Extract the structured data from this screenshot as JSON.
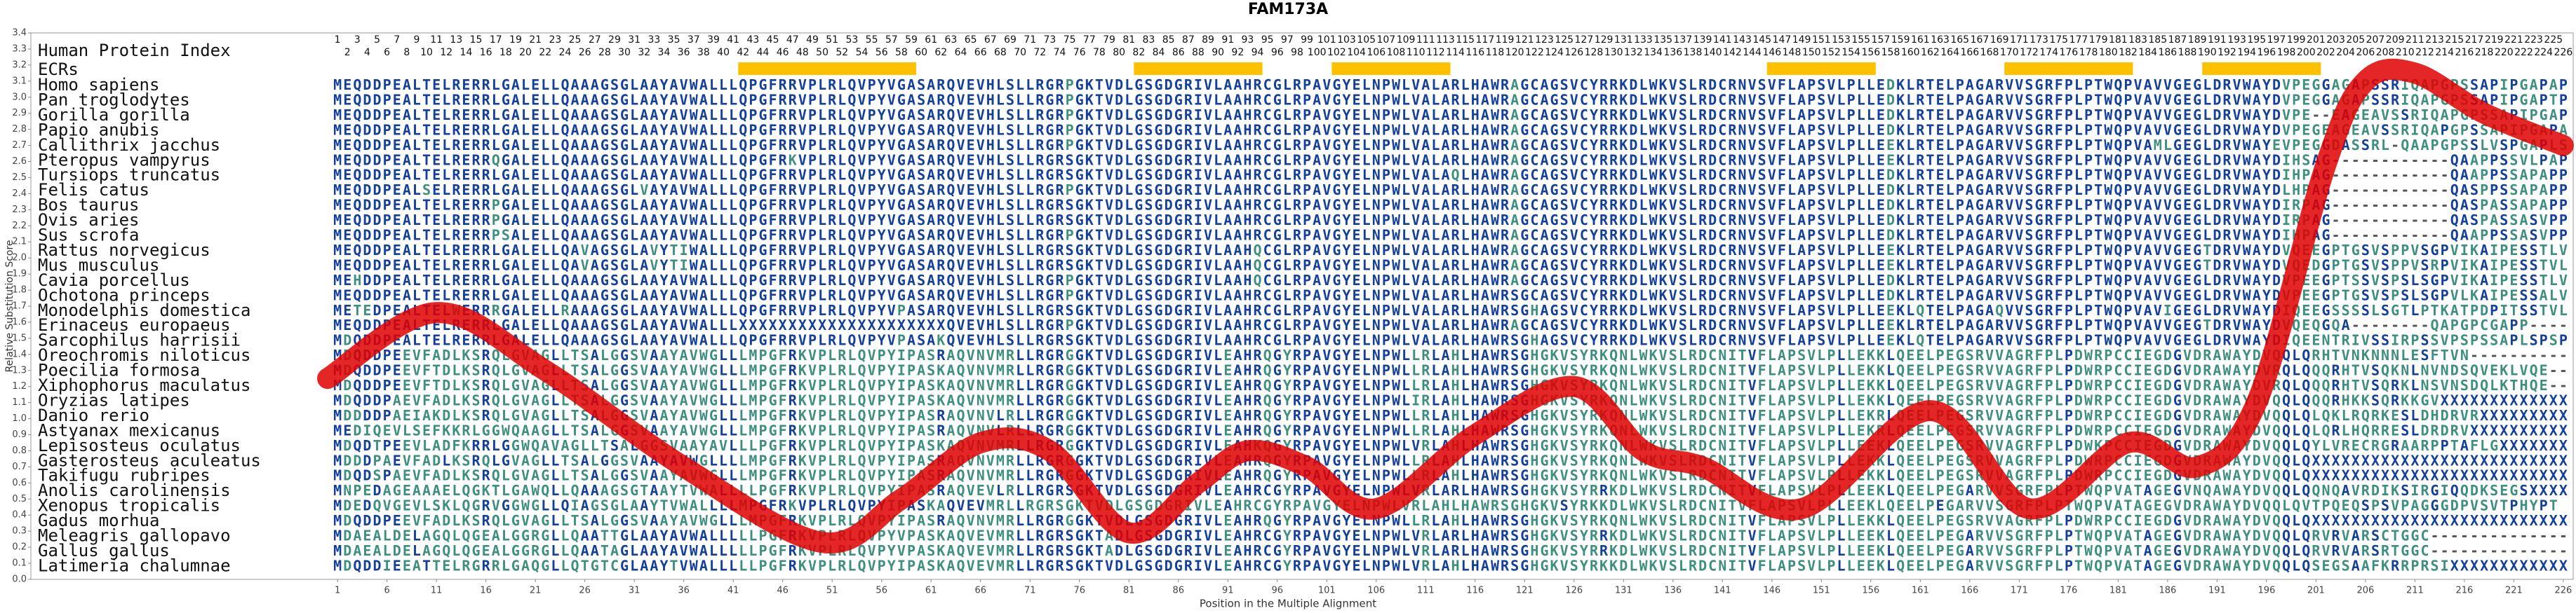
{
  "chart_data": {
    "type": "line",
    "title": "FAM173A",
    "ylabel": "Relative Substitution Score",
    "xlabel": "Position in the Multiple Alignment",
    "color": "#e00000",
    "x": [
      0,
      11,
      22,
      36,
      50,
      58,
      66,
      73,
      81,
      88,
      93,
      99,
      106,
      116,
      126,
      133,
      139,
      149,
      162,
      172,
      182,
      189,
      195,
      202,
      206,
      211,
      218,
      226
    ],
    "values": [
      1.25,
      1.66,
      1.3,
      0.7,
      0.23,
      0.5,
      0.85,
      0.8,
      0.29,
      0.6,
      0.8,
      0.7,
      0.44,
      0.9,
      1.2,
      0.8,
      0.7,
      0.44,
      1.05,
      0.44,
      0.85,
      0.7,
      1.1,
      2.58,
      3.1,
      3.15,
      2.9,
      2.7
    ],
    "xlim": [
      -30,
      227
    ],
    "ylim": [
      0,
      3.4
    ],
    "xticks": [
      1,
      6,
      11,
      16,
      21,
      26,
      31,
      36,
      41,
      46,
      51,
      56,
      61,
      66,
      71,
      76,
      81,
      86,
      91,
      96,
      101,
      106,
      111,
      116,
      121,
      126,
      131,
      136,
      141,
      146,
      151,
      156,
      161,
      166,
      171,
      176,
      181,
      186,
      191,
      196,
      201,
      206,
      211,
      216,
      221,
      226
    ],
    "yticks": [
      {
        "value": 0,
        "label": "0.0"
      },
      0.1,
      0.2,
      0.3,
      0.4,
      0.5,
      0.6,
      0.7,
      0.8,
      0.9,
      {
        "value": 1,
        "label": "1.0"
      },
      1.1,
      1.2,
      1.3,
      1.4,
      1.5,
      1.6,
      1.7,
      1.8,
      1.9,
      {
        "value": 2,
        "label": "2.0"
      },
      2.1,
      2.2,
      2.3,
      2.4,
      2.5,
      2.6,
      2.7,
      2.8,
      2.9,
      {
        "value": 3,
        "label": "3.0"
      },
      3.1,
      3.2,
      3.3,
      3.4
    ],
    "index_label": "Human Protein Index",
    "human_index": [
      1,
      2,
      3,
      4,
      5,
      6,
      7,
      8,
      9,
      10,
      11,
      12,
      13,
      14,
      15,
      16,
      17,
      18,
      19,
      20,
      21,
      22,
      23,
      24,
      25,
      26,
      27,
      28,
      29,
      30,
      31,
      32,
      33,
      34,
      35,
      36,
      37,
      38,
      39,
      40,
      41,
      42,
      43,
      44,
      45,
      46,
      47,
      48,
      49,
      50,
      51,
      52,
      53,
      54,
      55,
      56,
      57,
      58,
      59,
      60,
      61,
      62,
      63,
      64,
      65,
      66,
      67,
      68,
      69,
      70,
      71,
      72,
      73,
      74,
      75,
      76,
      77,
      78,
      79,
      80,
      81,
      82,
      83,
      84,
      85,
      86,
      87,
      88,
      89,
      90,
      91,
      92,
      93,
      94,
      95,
      96,
      97,
      98,
      99,
      100,
      101,
      102,
      103,
      104,
      105,
      106,
      107,
      108,
      109,
      110,
      111,
      112,
      113,
      114,
      115,
      116,
      117,
      118,
      119,
      120,
      121,
      122,
      123,
      124,
      125,
      126,
      127,
      128,
      129,
      130,
      131,
      132,
      133,
      134,
      135,
      136,
      137,
      138,
      139,
      140,
      141,
      142,
      143,
      144,
      145,
      146,
      147,
      148,
      149,
      150,
      151,
      152,
      153,
      154,
      155,
      156,
      157,
      158,
      159,
      160,
      161,
      162,
      163,
      164,
      165,
      166,
      167,
      168,
      169,
      170,
      171,
      172,
      173,
      174,
      175,
      176,
      177,
      178,
      179,
      180,
      181,
      182,
      183,
      184,
      185,
      186,
      187,
      188,
      189,
      190,
      191,
      192,
      193,
      194,
      195,
      196,
      197,
      198,
      199,
      200,
      201,
      202,
      203,
      204,
      205,
      206,
      207,
      208,
      209,
      210,
      211,
      212,
      213,
      214,
      215,
      216,
      217,
      218,
      219,
      220,
      221,
      222,
      223,
      224,
      225,
      226
    ],
    "ecr_label": "ECRs",
    "ecr_color": "#ffc000",
    "ecrs": [
      [
        42,
        59
      ],
      [
        82,
        94
      ],
      [
        102,
        113
      ],
      [
        146,
        156
      ],
      [
        170,
        182
      ],
      [
        190,
        201
      ]
    ],
    "species": [
      "Homo sapiens",
      "Pan troglodytes",
      "Gorilla gorilla",
      "Papio anubis",
      "Callithrix jacchus",
      "Pteropus vampyrus",
      "Tursiops truncatus",
      "Felis catus",
      "Bos taurus",
      "Ovis aries",
      "Sus scrofa",
      "Rattus norvegicus",
      "Mus musculus",
      "Cavia porcellus",
      "Ochotona princeps",
      "Monodelphis domestica",
      "Erinaceus europaeus",
      "Sarcophilus harrisii",
      "Oreochromis niloticus",
      "Poecilia formosa",
      "Xiphophorus maculatus",
      "Oryzias latipes",
      "Danio rerio",
      "Astyanax mexicanus",
      "Lepisosteus oculatus",
      "Gasterosteus aculeatus",
      "Takifugu rubripes",
      "Anolis carolinensis",
      "Xenopus tropicalis",
      "Gadus morhua",
      "Meleagris gallopavo",
      "Gallus gallus",
      "Latimeria chalumnae"
    ],
    "sequences": [
      "MEQDDPEALTELRERRLGALELLQAAAGSGLAAYAVWALLLQPGFRRVPLRLQVPYVGASARQVEVHLSLLRGRPGKTVDLGSGDGRIVLAAHRCGLRPAVGYELNPWLVALARLHAWRAGCAGSVCYRRKDLWKVSLRDCRNVSVFLAPSVLPLLEDKLRTELPAGARVVSGRFPLPTWQPVAVVGEGLDRVWAYDVPEGGAGAPSSRIQAPGPSSAPIPGAPAP",
      "MEQDDPEALTELRERRLGALELLQAAAGSGLAAYAVWALLLQPGFRRVPLRLQVPYVGASARQVEVHLSLLRGRPGKTVDLGSGDGRIVLAAHRCGLRPAVGYELNPWLVALARLHAWRAGCAGSVCYRRKDLWKVSLRDCRNVSVFLAPSVLPLLEDKLRTELPAGARVVSGRFPLPTWQPVAVVGEGLDRVWAYDVPEGGAGAPSSRIQAPGPSSAPIPGAPTP",
      "MEQDDPEALTELRERRLGALELLQAAAGSGLAAYAVWALLLQPGFRRVPLRLQVPYVGASARQVEVHLSLLRGRPGKTVDLGSGDGRIVLAAHRCGLRPAVGYELNPWLVALARLHAWRAGCAGSVCYRRKDLWKVSLRDCRNVSVFLAPSVLPLLEDKLRTELPAGARVVSGRFPLPTWQPVAVVGEGLDRVWAYDVPE--EAGEAVSSRIQAPGPSSAPIPGAP",
      "MEQDDPEALTELRERRLGALELLQAAAGSGLAAYAVWALLLQPGFRRVPLRLQVPYVGASARQVEVHLSLLRGRPGKTVDLGSGDGRIVLAAHRCGLRPAVGYELNPWLVALARLHAWRAGCAGSVCYRRKDLWKVSLRDCRNVSVFLAPSVLPLLEDKLRTELPAGARVVSGRFPLPTWQPVAVVGEGLDRVWAYDVPEGEAGEAVSSRIQAPGPSSAPIPGAPA",
      "MEQDDPEALTELRERRLGALELLQAAAGSGLAAYAVWALLLQPGFRRVPLRLQVPYVGASARQVEVHLSLLRGRPGKTVDLGSGDGRIVLAAHRCGLRPAVGYELNPWLVALARLHAWRAGCAGSVCYRRKDLWKVSLRDCRNVSVFLAPSVLPLLEEKLRTELPAGARVVSGRFPLPTWQPVAMLGEGLDRVWAYEVPEGGDASSRL-QAAPGPSSLVSPGAPLS",
      "MEQDDPEALTELRERRQGALELLQAAAGSGLAAYAVWALLLQPGFRKVPLRLQVPYVGASARQVEVHLSLLRGRSGKTVDLGSGDGRIVLAAHRCGLRPAVGYELNPWLVALARLHAWRAGCAGSVCYRRKDLWKVSLRDCRNVSVFLAPSVLPLLEEKLRTELPAGARVVSGRFPLPTWQPVAVVGEGLDRVWAYDIHSAG------------QAAPPSSVLPAP",
      "MEQDDPEALTELRERRLGALELLQAAAGSGLAAYAVWALLLQPGFRRVPLRLQVPYVGASARQVEVHLSLLRGRSGKTVDLGSGDGRIVLAAHRCGLRPAVGYELNPWLVALAQLHAWRAGCAGSVCYRRKDLWKVSLRDCRNVSVFLAPSVLPLLEDKLRTELPAGARVVSGRFPLPTWQPVAVVGEGLDRVWAYDIHPAG------------QAAPPSSAPAPP",
      "MEQDDPEALSELRERRLGALELLQAAAGSGLVAYAVWALLLQPGFRRVPLRLQVPYVGASARQVEVHLSLLRGRPGKTVDLGSGDGRIVLAAHRCGLRPAVGYELNPWLVALARLHAWRAGCAGSVCYRRKDLWKVSLRDCRNVSVFLAPSVLPLLEDKLRTELPAGARVVSGRFPLPTWQPVAVVGEGLDRVWAYDLHPAG------------QASPPSSAPAPP",
      "MEQDDPEALTELRERRPGALELLQAAAGSGLAAYAVWALLLQPGFRRVPLRLQVPYVGASARQVEVHLSLLRGRSGKTVDLGSGDGRIVLAAHRCGLRPAVGYELNPWLVALARLHAWRAGCAGSVCYRRKDLWKVSLRDCRNVSVFLAPSVLPLLEDKLRTELPAGARVVSGRFPLPTWQPVAVVGEGLDRVWAYDIRPAG------------QASPASSAPAPP",
      "MEQDDPEALTELRERRPGALELLQAAAGSGLAAYAVWALLLQPGFRRVPLRLQVPYVGASARQVEVHLSLLRGRSGKTVDLGSGDGRIVLAAHRCGLRPAVGYELNPWLVALARLHAWRAGCAGSVCYRRKDLWKVSLRDCRNVSVFLAPSVLPLLEDKLRTELPAGARVVSGRFPLPTWQPVAVVGEGLDRVWAYDIRPAG------------QASPASSASVPP",
      "MEQDDPEALTELRERRPSALELLQAAAGSGLAAYAVWALLLQPGFRRVPLRLQVPYVGASARQVEVHLSLLRGRPGKTVDLGSGDGRIVLAAHRCGLRPAVGYELNPWLVALARLHAWRAGCAGSVCYRRKDLWKVSLRDCRNVSVFLAPSVLPLLEDKLRTELPAGARVVSGRFPLPTWQPVAVVGEGLDRVWAYDIHPAG------------QAAPPSSASVPP",
      "MEQDDPEALTELRERRLGALELLQAVAGSGLAVYTIWALLLQPGFRRVPLRLQVPYVGASARQVEVHLSLLRGRSGKTVDLGSGDGRIVLAAHQCGLRPAVGYELNPWLVALARLHAWRAGCAGSVCYRRKDLWKVSLRDCRNVSVFLAPSVLPLLEEKLRTELPAGARVVSGRFPLPTWQPVAVVGEGTDRVWAYDVQEEGPTGSVSPPVSGPVIKAIPESSTLV",
      "MEQDDPEALTELRERRLGALELLQAVAGSGLAVYTIWALLLQPGFRRVPLRLQVPYVGASARQVEVHLSLLRGRSGKTVDLGSGDGRIVLAAHQCGLRPAVGYELNPWLVALARLHAWRAGCAGSVCYRRKDLWKVSLRDCRNVSVFLAPSVLPLLEEKLRTELPAGARVVSGRFPLPTWQPVAVVGEGTDRVWAYDVQEDGPTGSVSPPVSRPVIKAIPESSTVL",
      "MEHDDPEALTELRERRLGALELLQAAAGSGLAAYAVWALLLQPGFRRVPLRLQVPYVGASARQVEVHLSLLRGRPGKTVDLGSGDGRIVLAAHQCGLRPAVGYELNPWLVALARLHAWRAGCAGSVCYRRKDLWKVSLRDCRNVSVFLAPSVLPLLEDKLRTELPAGARVVSGRFPLPTWQPVAVVGEGLDRVWAYDVPEEGPTSSVSPSLSGPVIKAIPESSTLV",
      "MEQDDPEALTELRERRLGALELLQAAAGSGLAAYAVWALLLQPGFRRVPLRLQVPYVGASARQVEVHLSLLRGRPGKTVDLGSGDGRIVLAAHRCGLRPAVGYELNPWLVALARLHAWRSGCAGSVCYRRKDLWKVSLRDCRNVSVFLAPSVLPLLEDKLRTELPAGARVVSGRFPLPTWQPVAVVGEGLDRVWAYDVPEEGPTGSVSPSLSGPVLKAIPESSALV",
      "METEDPEALTELWERRRGALELLRAAAGSGLAAYAVWALLLQPGFRRVPLRLQVPYVPASARQVEVHLSLLRGRSGKTVDLGSGDGRIVLAAHRCGLRPAVGYELNPWLVALARLHAWRSGHAGSVCYRRKDLWKVSLRDCRNVSVFLAPSVLPLLEEKLQTELPAGAQVVSGRFPLPTWQPVAVIGEGLDRVWAYDIQEEGSSSSLSGTLPTKATPDPITSSTVL",
      "MEQDDPEALTELRERRLGALELLQAAAGSGLAAYAVWALLLXXXXXXXXXXXXXXXXXXXXXQVEVHLSLLRGRPGKTVDLGSGDGRIVLAAHRCGLRPAVGYELNPWLVALARLHAWRAGCAGSVCYRRKDLWKVSLRDCRNVSVFLAPSVLPLLEEKLRTELPAGARVVSGRFPLPTWQPVAVVGEGTDRVWAYDVQEQGQA--------QAPGPCGAPP----",
      "MDQDDPEALTELRERRLGALELLQAAAGSGLAAYAVWALLLQPGFRRVPLRLQVPYVPASAKQVEVHLSLLRGRSGKTVDLGSGDGRIVLAAHRCGLRPAVGYELNPWLVALARLHAWRSGHAGSVCYRRKDLWKVSLRDCRNVSVFLAPSVLPLLEEKLQTELPAGARVVSGRFPLPTWQPVAVVGEGLDRVWAYDIQEENTRIVSSIRPSSVPSPSSAPLSPSP",
      "MDQDDPEEVFADLKSRQLGVAGLLTSALGGSVAAYAVWGLLLMPGFRKVPLRLQVPYIPASRAQVNVMRLLRGRGGKTVDLGSGDGRIVLEAHRQGYRPAVGYELNPWLLRLAHLHAWRSGHGKVSYRKQNLWKVSLRDCNITVFLAPSVLPLLEKKLQEELPEGSRVVAGRFPLPDWRPCCIEGDGVDRAWAYDVQQLQRHTVNKNNNLESFTVN----------",
      "MDQDDPEEVFTDLKSRQLGVAGLLTSALGGSVAAYAVWGLLLMPGFRKVPLRLQVPYIPASKAQVNVMRLLRGRGGKTVDLGSGDGRIVLEAHRQGYRPAVGYELNPWLLRLAHLHAWRSGHGKVSYRKQNLWKVSLRDCNITVFLAPSVLPLLEKKLQEELPEGSRVVAGRFPLPDWRPCCIEGDGVDRAWAYDVRQLQQQRHTVSQKNLNVNDSQVEKLVQE--",
      "MDQDDPEEVFTDLKSRQLGVAGLLTSALGGSVAAYAVWGLLLMPGFRKVPLRLQVPYIPASKAQVNVMRLLRGRGGKTVDLGSGDGRIVLEAHRQGYRPAVGYELNPWLLRLAHLHAWRSGHGKVSYRKQNLWKVSLRDCNITVFLAPSVLPLLEKKLQEELPEGSRVVAGRFPLPDWRPCCIEGDGVDRAWAYDVRQLQQQRHTVSQRKLNSVNSDQLKTHQE--",
      "MDQDDPAEVFADLKSRQLGVAGLLTSALGGSVAAYAVWGLLLMPGFRKVPLRLQVPYIPASKAQVNVMRLLRGRGGKTVDLGSGDGRIVLEAHRQGYRPAVGYELNPWLIRLAHLHAWRSGHGKVSYRKQNLWKVSLRDCNITVFLAPSVLPLLEKKLQEELPEGSRVVAGRFPLPDWRPCCIEGDGVDRAWAYDVQQLQQQRHKKSQRKKGVXXXXXXXXXXXXX",
      "MDDDDPAEIAKDLKSRQLGVAGLLTSALGGSVAAYAVWGLLLMPGFRKVPLRLQVPYIPASRAQVNVLRLLRGRGGKTVDLGSGDGRIVLEAHRQGYRPAVGYELNPWLLRLAHLHAWRSGHGKVSYRKQNLWKVSLRDCNITVFLAPSVLPLLEKRLQEELPEGSRVVAGRFPLPDWRPCCIEGDGVDRAWAYDVQQLQLQKLRQRKESLDHDRVRXXXXXXXXX",
      "MEDIQEVLSEFKKRLGGWQAAGLLTSALGGSVAAYAVWGLLLMPGFRKVPLRLQVPYIPASRAQVNVLRLLRGRGGKTVDLGSGDGRIVLEAHRQGYRPAVGYELNPWLLRLAHLHAWRSGHGKVSYRKQNLWKVSLRDCNITVFLAPSVLPLLEKRLQEELPEGSRVVAGRFPLPDWRPCCIEGDGVDRAWAYDVQQLQLQRLHQRRESLDRDRVXXXXXXXXXX",
      "MDQDTPEEVLADFKRRLGGWQAVAGLLTSALGGSVAAYAVLLLPGFRKVPLRLQVPYIPASKAQVNVMRLLRGRGGKTVDLGSGDGRIVLEAHKQGYRPAVGYELNPWLVRLAHLHAWRSGHGKVSYRKQNLWKVSLRDCNITVFLAPSVLPLLEEKLQEELPEGSRVVAGRFPLPDWKPCCIEGDGVDRAWAYDVQQLQYLVRECRGRAARPPTAFLGXXXXXXX",
      "MDDDPAEVFADLKSRQLGVAGLLTSALGGSVAAYAVWGLLLLMPGFRKVPLRLQVPYIPASRAQVNVMRLLRGRGGKTVDLGSGDGRIVLEAHRQGYRPAVGYELNPWLLRLAHLHAWRSGHGKVSYRKQNLWKVSLRDCNITVFLAPSVLPLLEKKLQEELPEGSRVVAGRFPLPDWRPCCIEGDGVDRAWAYDVQQLQXXXXXXXXXXXXXXXXXXXXXXXXXX",
      "MDQDSPAEVFADLKSRQLGVAGLLTSALGGSVAAYAVWGLLLMPGFRKVPLRLQVPYIPASRAQVNVMRLLRGRGGKTVDLGSGDGRIVLEAHRQGYRPAVGYELNPWLLRLAHLHAWRSGHGKVSYRKQNLWKVSLRDCNITVFLAPSVLPLLEKKLQEELPEGSRVVAGRFPLPDWRPCCIEGDGVDRAWAYDVQQLQXXXXXXXXXXXXXXXXXXXXXXXXXX",
      "MNPEDAGEAAAELQGKTLGAWQLLQAAAGSGTAAYTVWALLLLPGFRKVPLRLQVPYIPASRAQVEVLRLLRGRSGKTVDLGSGDGRIVLEAHRCGYRPAVGYELNPWLVRLARLHAWRSGHGKVSYRRKDLWKVSLRDCNITVFLAPSVLPLLEEKLQEELPEGARVVSGRFPLPTWQPVATAGEGVNQAWAYDVQQLQQNQAVRDIKSIRGIQQDKSEGSXXXX",
      "MDEDQVGEVLSKLQGRVGGWGLLQIAGSGLAAYTVWALLLLMPGFRKVPLRLQVPYIPASKAQVEVMRLLRGRSGKTVDLGSGDGRIVLEAHRCGYRPAVGYELNPWLVRLAHLHAWRSGHGKVSYRKKDLWKVSLRDCNITVFLAPSVLPLLEEKLQEELPEGARVVSGRFPLPTWQPVATAGEGVDRAWAYDVQQLQVTPQEQSPSVPAGGGDPVSVTPHYPT",
      "MDQDDPEEVFADLKSRQLGVAGLLTSALGGSVAAYAVWGLLLMPGFRKVPLRLQVPYIPASRAQVNVMRLLRGRGGKTVDLGSGDGRIVLEAHRQGYRPAVGYELNPWLLRLAHLHAWRSGHGKVSYRKQNLWKVSLRDCNITVFLAPSVLPLLEKKLQEELPEGSRVVAGRFPLPDWRPCCIEGDGVDRAWAYDVQQLQXXXXXXXXXXXXXXXXXXXXXXXXXX",
      "MDAEALDELAGQLQGEALGGRGLLQAATTGLAAYAVWALLLLLPGFRKVPLRLQVPYVPASKAQVEVMRLLRGRSGKTADLGSGDGRIVLEAHRCGYRPAVGYELNPWLVRLARLHAWRSGHGKVSYRRKDLWKVSLRDCNITVFLAPSVLPLLEEKLQEELPEGARVVSGRFPLPTWQPVATAGEGVDRAWAYDVQQLQRVRVARSCTGGC--------------",
      "MDAEALDELAGQLQGEALGGRGLLQAATAGLAAYAVWALLLLLPGFRKVPLRLQVPYVPASKAQVEVMRLLRGRSGKTADLGSGDGRIVLEAHRCGYRPAVGYELNPWLVRLARLHAWRSGHGKVSYRRKDLWKVSLRDCNITVFLAPSVLPLLEEKLQEELPEGARVVSGRFPLPTWQPVATAGEGVDRAWAYDVQQLQRVRVARSRTGGC--------------",
      "MDQDDIEEATTELRGRRLGAQGLLQTGTCGLAAYTVWALLLLLPGFRKVPLRLQVPYIPASKAQVEVMRLLRGRSGKTVDLGSGDGRIVLEAHRCGYRPAVGYELNPWLVRLAHLHAWRSGHGKVSYRKKDLWKVSLRDCNITVFLAPSVLPLLEEKLQEELPEGARVVSGRFPLPTWQPVATAGEGVDRAWAYDVQQLQSEGSAAFKRRPRSIXXXXXXXXXXXX"
    ]
  }
}
